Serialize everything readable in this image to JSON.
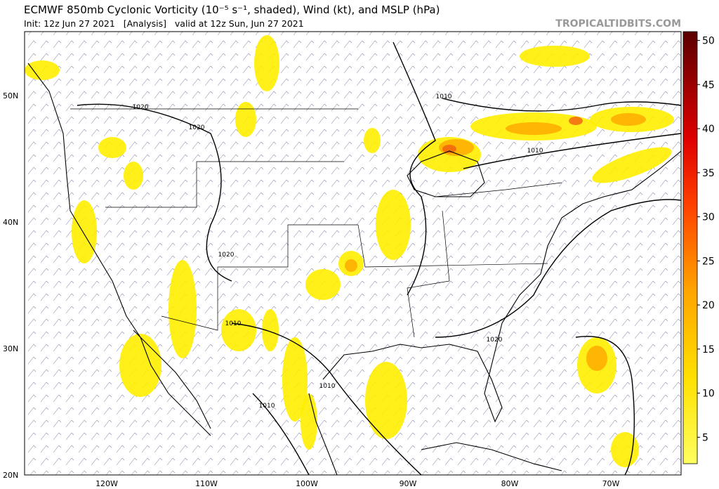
{
  "header": {
    "title": "ECMWF 850mb Cyclonic Vorticity (10⁻⁵ s⁻¹, shaded), Wind (kt), and MSLP (hPa)",
    "subtitle": "Init: 12z Jun 27 2021   [Analysis]   valid at 12z Sun, Jun 27 2021",
    "site": "TROPICALTIDBITS.COM"
  },
  "map": {
    "latitude_labels": [
      "50N",
      "40N",
      "30N",
      "20N"
    ],
    "longitude_labels": [
      "120W",
      "110W",
      "100W",
      "90W",
      "80W",
      "70W"
    ],
    "isobar_labels": [
      "1020",
      "1020",
      "1010",
      "1010",
      "1020",
      "1010",
      "1020",
      "1010",
      "1010"
    ]
  },
  "colorbar": {
    "range": [
      2,
      51
    ],
    "ticks": [
      5,
      10,
      15,
      20,
      25,
      30,
      35,
      40,
      45,
      50
    ]
  }
}
